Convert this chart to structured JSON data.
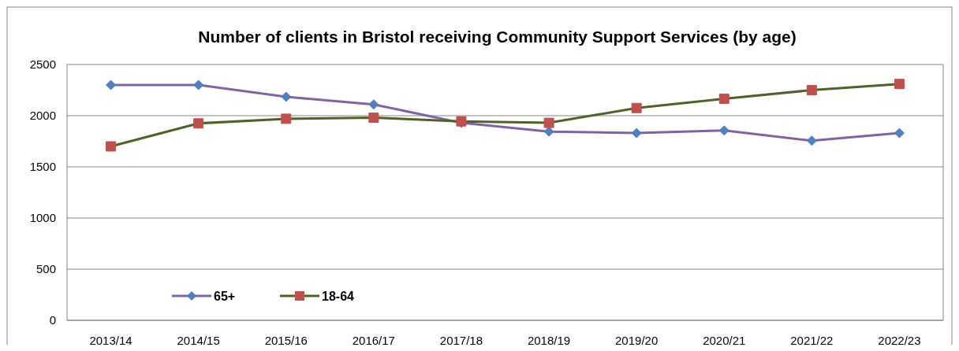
{
  "chart_data": {
    "type": "line",
    "title": "Number of clients in Bristol receiving Community Support Services (by age)",
    "categories": [
      "2013/14",
      "2014/15",
      "2015/16",
      "2016/17",
      "2017/18",
      "2018/19",
      "2019/20",
      "2020/21",
      "2021/22",
      "2022/23"
    ],
    "series": [
      {
        "name": "65+",
        "color": "#8064a2",
        "marker": "diamond",
        "values": [
          2300,
          2300,
          2185,
          2110,
          1930,
          1845,
          1830,
          1855,
          1755,
          1830
        ]
      },
      {
        "name": "18-64",
        "color": "#4f6228",
        "marker": "square",
        "values": [
          1700,
          1925,
          1970,
          1980,
          1945,
          1930,
          2075,
          2165,
          2250,
          2310
        ]
      }
    ],
    "ylim": [
      0,
      2500
    ],
    "yticks": [
      0,
      500,
      1000,
      1500,
      2000,
      2500
    ],
    "grid": "y",
    "legend": "bottom left"
  }
}
